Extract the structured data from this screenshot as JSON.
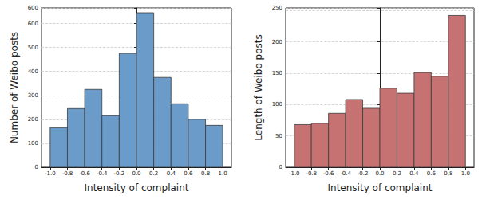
{
  "chart_data": [
    {
      "type": "histogram",
      "xlabel": "Intensity of complaint",
      "ylabel": "Number of Weibo posts",
      "bins": [
        -1.0,
        -0.8,
        -0.6,
        -0.4,
        -0.2,
        0.0,
        0.2,
        0.4,
        0.6,
        0.8,
        1.0
      ],
      "values": [
        165,
        245,
        325,
        215,
        475,
        645,
        375,
        265,
        200,
        175
      ],
      "color": "#6a9bc9",
      "xlim": [
        -1.1,
        1.1
      ],
      "xticks": [
        {
          "value": -1.0,
          "label": "-1.0"
        },
        {
          "value": -0.8,
          "label": "-0.8"
        },
        {
          "value": -0.6,
          "label": "-0.6"
        },
        {
          "value": -0.4,
          "label": "-0.4"
        },
        {
          "value": -0.2,
          "label": "-0.2"
        },
        {
          "value": 0.0,
          "label": "0.0"
        },
        {
          "value": 0.2,
          "label": "0.2"
        },
        {
          "value": 0.4,
          "label": "0.4"
        },
        {
          "value": 0.6,
          "label": "0.6"
        },
        {
          "value": 0.8,
          "label": "0.8"
        },
        {
          "value": 1.0,
          "label": "1.0"
        }
      ],
      "ylim": [
        0,
        665
      ],
      "yticks": [
        0,
        100,
        200,
        300,
        400,
        500,
        600
      ],
      "grid": true
    },
    {
      "type": "histogram",
      "xlabel": "Intensity of complaint",
      "ylabel": "Length of Weibo posts",
      "bins": [
        -1.0,
        -0.8,
        -0.6,
        -0.4,
        -0.2,
        0.0,
        0.2,
        0.4,
        0.6,
        0.8,
        1.0
      ],
      "values": [
        68,
        70,
        86,
        108,
        94,
        126,
        118,
        151,
        145,
        242
      ],
      "color": "#c67272",
      "xlim": [
        -1.1,
        1.1
      ],
      "xticks": [
        {
          "value": -1.0,
          "label": "-1.0"
        },
        {
          "value": -0.8,
          "label": "-0.8"
        },
        {
          "value": -0.6,
          "label": "-0.6"
        },
        {
          "value": -0.4,
          "label": "-0.4"
        },
        {
          "value": -0.2,
          "label": "-0.2"
        },
        {
          "value": 0.0,
          "label": "0.0"
        },
        {
          "value": 0.2,
          "label": "0.2"
        },
        {
          "value": 0.4,
          "label": "0.4"
        },
        {
          "value": 0.6,
          "label": "0.6"
        },
        {
          "value": 0.8,
          "label": "0.8"
        },
        {
          "value": 1.0,
          "label": "1.0"
        }
      ],
      "ylim": [
        0,
        254
      ],
      "yticks": [
        0,
        50,
        100,
        150,
        200,
        250
      ],
      "grid": true
    }
  ]
}
